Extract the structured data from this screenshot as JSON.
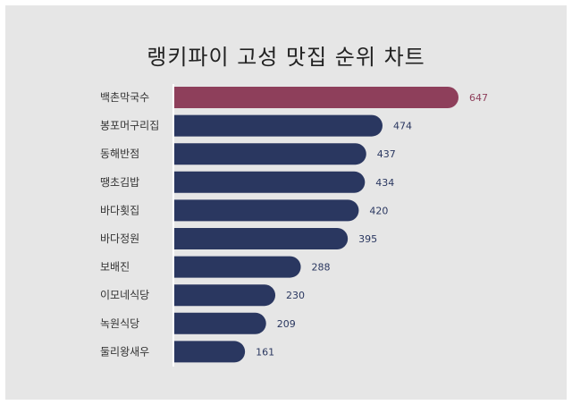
{
  "chart_data": {
    "type": "bar",
    "orientation": "horizontal",
    "title": "랭키파이 고성 맛집 순위 차트",
    "categories": [
      "백촌막국수",
      "봉포머구리집",
      "동해반점",
      "땡초김밥",
      "바다횟집",
      "바다정원",
      "보배진",
      "이모네식당",
      "녹원식당",
      "둘리왕새우"
    ],
    "values": [
      647,
      474,
      437,
      434,
      420,
      395,
      288,
      230,
      209,
      161
    ],
    "highlight_index": 0,
    "colors": {
      "highlight": "#8e3f5b",
      "bar": "#2a3760",
      "highlight_label": "#8e3f5b",
      "label": "#2a3760",
      "background": "#e6e6e6"
    },
    "grid": false,
    "legend": "none"
  }
}
